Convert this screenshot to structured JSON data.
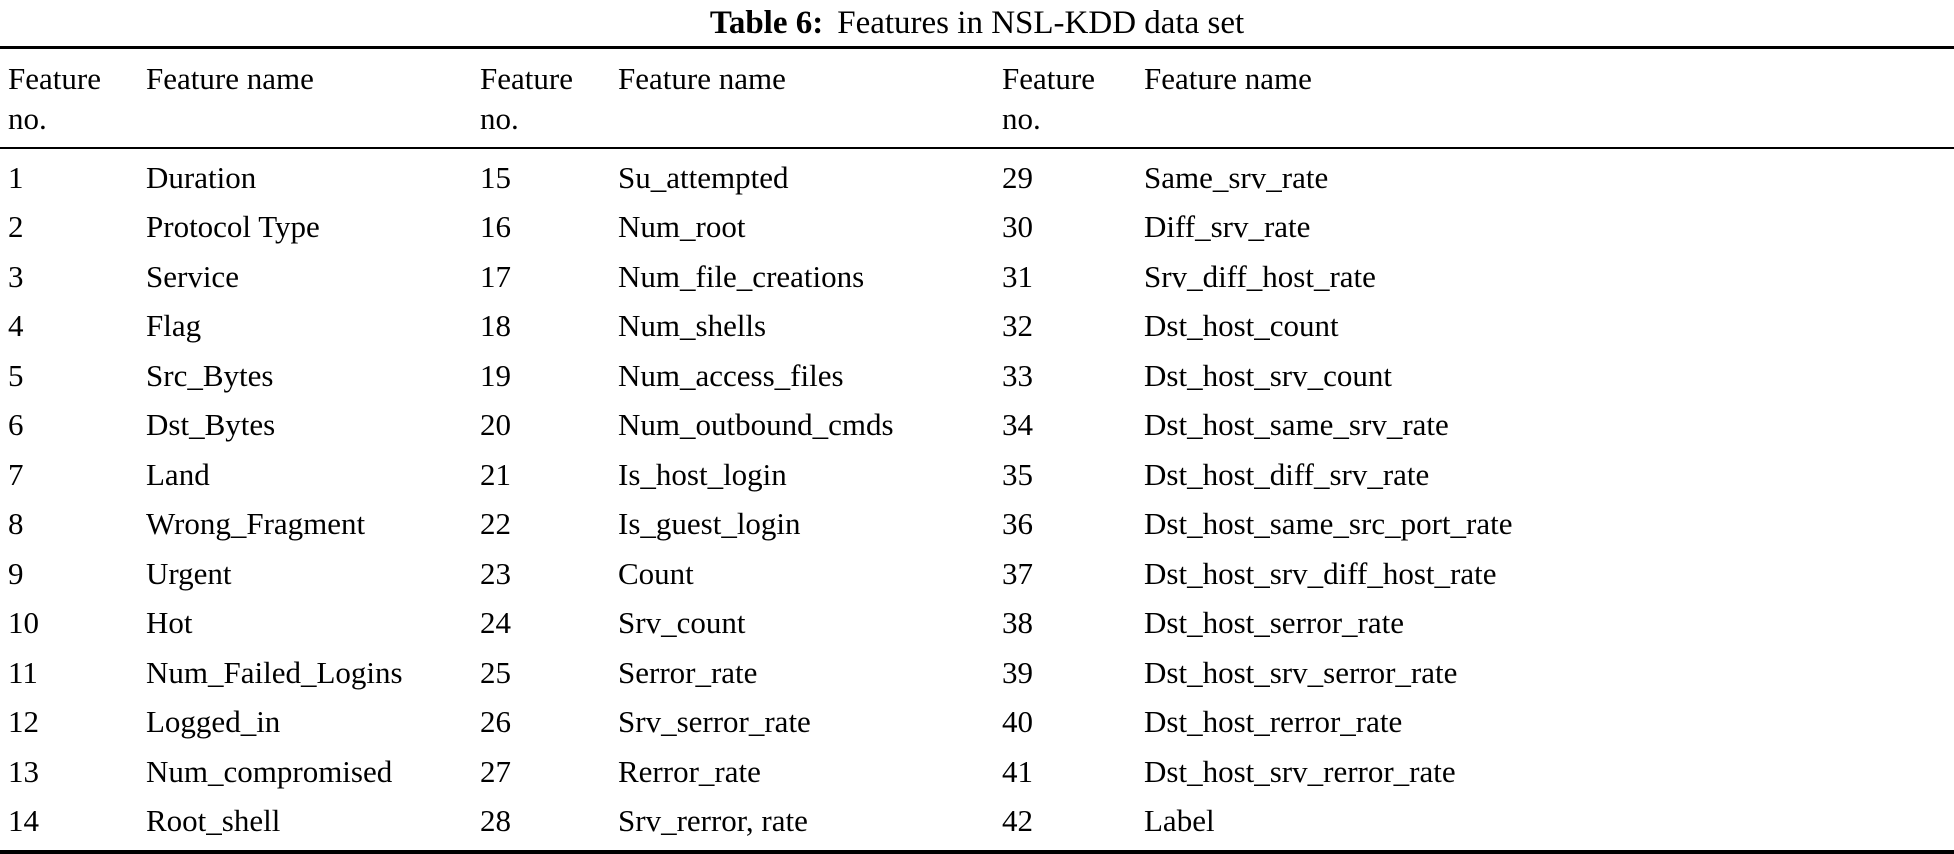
{
  "title": {
    "label": "Table 6:",
    "text": "Features in NSL-KDD data set"
  },
  "header": {
    "feature": "Feature",
    "no": "no.",
    "name": "Feature name"
  },
  "features": [
    {
      "no": "1",
      "name": "Duration"
    },
    {
      "no": "2",
      "name": "Protocol Type"
    },
    {
      "no": "3",
      "name": "Service"
    },
    {
      "no": "4",
      "name": "Flag"
    },
    {
      "no": "5",
      "name": "Src_Bytes"
    },
    {
      "no": "6",
      "name": "Dst_Bytes"
    },
    {
      "no": "7",
      "name": "Land"
    },
    {
      "no": "8",
      "name": "Wrong_Fragment"
    },
    {
      "no": "9",
      "name": "Urgent"
    },
    {
      "no": "10",
      "name": "Hot"
    },
    {
      "no": "11",
      "name": "Num_Failed_Logins"
    },
    {
      "no": "12",
      "name": "Logged_in"
    },
    {
      "no": "13",
      "name": "Num_compromised"
    },
    {
      "no": "14",
      "name": "Root_shell"
    },
    {
      "no": "15",
      "name": "Su_attempted"
    },
    {
      "no": "16",
      "name": "Num_root"
    },
    {
      "no": "17",
      "name": "Num_file_creations"
    },
    {
      "no": "18",
      "name": "Num_shells"
    },
    {
      "no": "19",
      "name": "Num_access_files"
    },
    {
      "no": "20",
      "name": "Num_outbound_cmds"
    },
    {
      "no": "21",
      "name": "Is_host_login"
    },
    {
      "no": "22",
      "name": "Is_guest_login"
    },
    {
      "no": "23",
      "name": "Count"
    },
    {
      "no": "24",
      "name": "Srv_count"
    },
    {
      "no": "25",
      "name": "Serror_rate"
    },
    {
      "no": "26",
      "name": "Srv_serror_rate"
    },
    {
      "no": "27",
      "name": "Rerror_rate"
    },
    {
      "no": "28",
      "name": "Srv_rerror, rate"
    },
    {
      "no": "29",
      "name": "Same_srv_rate"
    },
    {
      "no": "30",
      "name": "Diff_srv_rate"
    },
    {
      "no": "31",
      "name": "Srv_diff_host_rate"
    },
    {
      "no": "32",
      "name": "Dst_host_count"
    },
    {
      "no": "33",
      "name": "Dst_host_srv_count"
    },
    {
      "no": "34",
      "name": "Dst_host_same_srv_rate"
    },
    {
      "no": "35",
      "name": "Dst_host_diff_srv_rate"
    },
    {
      "no": "36",
      "name": "Dst_host_same_src_port_rate"
    },
    {
      "no": "37",
      "name": "Dst_host_srv_diff_host_rate"
    },
    {
      "no": "38",
      "name": "Dst_host_serror_rate"
    },
    {
      "no": "39",
      "name": "Dst_host_srv_serror_rate"
    },
    {
      "no": "40",
      "name": "Dst_host_rerror_rate"
    },
    {
      "no": "41",
      "name": "Dst_host_srv_rerror_rate"
    },
    {
      "no": "42",
      "name": "Label"
    }
  ],
  "layout": {
    "rows_per_column": 14,
    "column_groups": 3
  }
}
